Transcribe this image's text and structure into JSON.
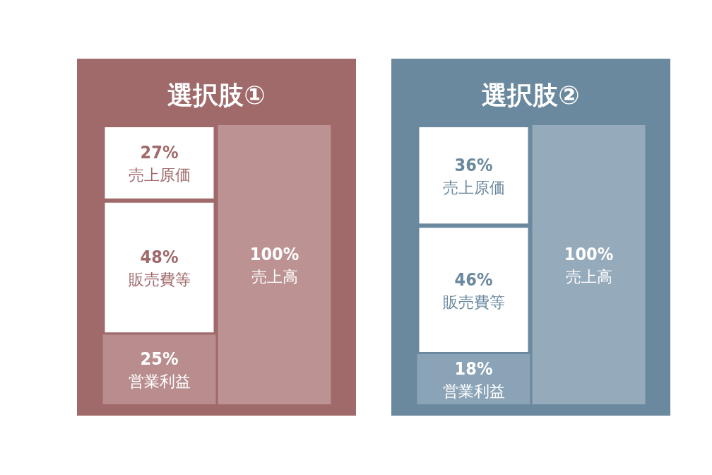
{
  "chart_data": [
    {
      "type": "bar",
      "title": "選択肢①",
      "categories": [
        null,
        null
      ],
      "stacked": true,
      "tick_labels": false,
      "series": [
        {
          "name": "営業利益",
          "color": "#b98c8d",
          "values": [
            25,
            null
          ],
          "value_labels": [
            "25%",
            null
          ]
        },
        {
          "name": "販売費等",
          "color": "#ffffff",
          "values": [
            48,
            null
          ],
          "value_labels": [
            "48%",
            null
          ]
        },
        {
          "name": "売上原価",
          "color": "#ffffff",
          "values": [
            27,
            null
          ],
          "value_labels": [
            "27%",
            null
          ]
        },
        {
          "name": "売上高",
          "color": "#bc9293",
          "values": [
            null,
            100
          ],
          "value_labels": [
            null,
            "100%"
          ]
        }
      ]
    },
    {
      "type": "bar",
      "title": "選択肢②",
      "categories": [
        null,
        null
      ],
      "stacked": true,
      "tick_labels": false,
      "series": [
        {
          "name": "営業利益",
          "color": "#8aa3b6",
          "values": [
            18,
            null
          ],
          "value_labels": [
            "18%",
            null
          ]
        },
        {
          "name": "販売費等",
          "color": "#ffffff",
          "values": [
            46,
            null
          ],
          "value_labels": [
            "46%",
            null
          ]
        },
        {
          "name": "売上原価",
          "color": "#ffffff",
          "values": [
            36,
            null
          ],
          "value_labels": [
            "36%",
            null
          ]
        },
        {
          "name": "売上高",
          "color": "#95aabb",
          "values": [
            null,
            100
          ],
          "value_labels": [
            null,
            "100%"
          ]
        }
      ]
    }
  ]
}
